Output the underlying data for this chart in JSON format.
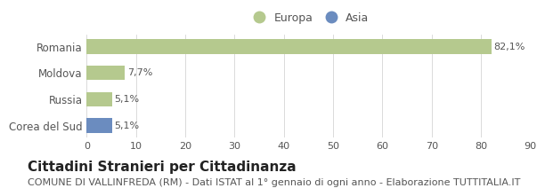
{
  "categories": [
    "Romania",
    "Moldova",
    "Russia",
    "Corea del Sud"
  ],
  "values": [
    82.1,
    7.7,
    5.1,
    5.1
  ],
  "colors": [
    "#b5c98e",
    "#b5c98e",
    "#b5c98e",
    "#6b8cbf"
  ],
  "labels": [
    "82,1%",
    "7,7%",
    "5,1%",
    "5,1%"
  ],
  "legend_items": [
    {
      "label": "Europa",
      "color": "#b5c98e"
    },
    {
      "label": "Asia",
      "color": "#6b8cbf"
    }
  ],
  "xlim": [
    0,
    90
  ],
  "xticks": [
    0,
    10,
    20,
    30,
    40,
    50,
    60,
    70,
    80,
    90
  ],
  "title": "Cittadini Stranieri per Cittadinanza",
  "subtitle": "COMUNE DI VALLINFREDA (RM) - Dati ISTAT al 1° gennaio di ogni anno - Elaborazione TUTTITALIA.IT",
  "title_fontsize": 11,
  "subtitle_fontsize": 8,
  "background_color": "#ffffff",
  "bar_height": 0.55,
  "label_fontsize": 8,
  "tick_fontsize": 8,
  "ytick_fontsize": 8.5,
  "text_color": "#555555",
  "grid_color": "#cccccc"
}
